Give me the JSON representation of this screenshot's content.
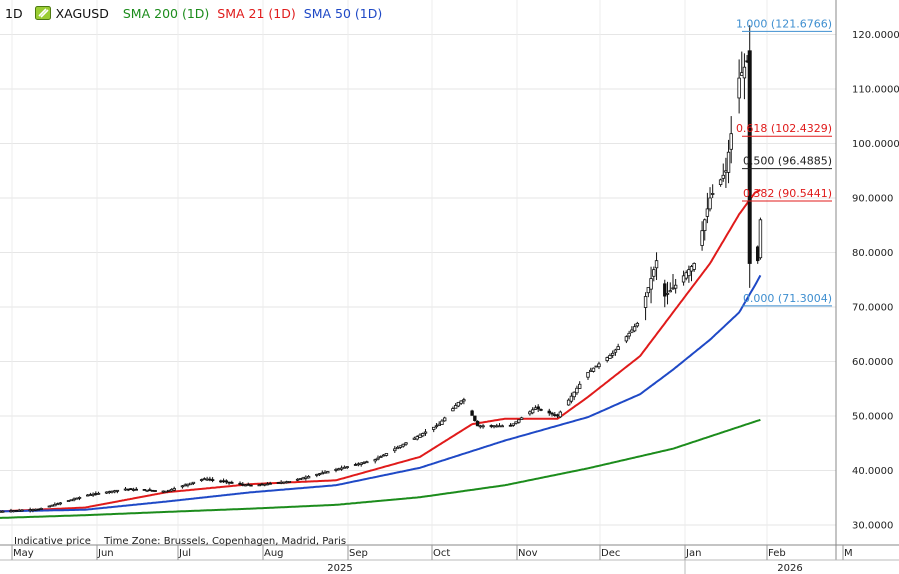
{
  "header": {
    "interval": "1D",
    "symbol": "XAGUSD",
    "studies": [
      {
        "label": "SMA 200 (1D)",
        "color": "#1c8c1c"
      },
      {
        "label": "SMA 21 (1D)",
        "color": "#e01b1b"
      },
      {
        "label": "SMA 50 (1D)",
        "color": "#1f49c6"
      }
    ]
  },
  "footer": {
    "price_note": "Indicative price",
    "timezone": "Time Zone: Brussels, Copenhagen, Madrid, Paris"
  },
  "chart_data": {
    "type": "line",
    "title": "",
    "xlabel": "",
    "ylabel": "",
    "ylim": [
      25.6,
      124.4
    ],
    "y_ticks": [
      "30.0000",
      "40.0000",
      "50.0000",
      "60.0000",
      "70.0000",
      "80.0000",
      "90.0000",
      "100.0000",
      "110.0000",
      "120.0000"
    ],
    "x_tick_labels": [
      "May",
      "Jun",
      "Jul",
      "Aug",
      "Sep",
      "Oct",
      "Nov",
      "Dec",
      "Jan",
      "Feb",
      "M"
    ],
    "year_labels": [
      "2025",
      "2026"
    ],
    "grid": true,
    "price_series": {
      "name": "XAGUSD",
      "candle_style": "black outline candles",
      "dates": [
        "May 1",
        "May 15",
        "Jun 2",
        "Jun 16",
        "Jul 1",
        "Jul 15",
        "Aug 1",
        "Aug 15",
        "Sep 1",
        "Sep 15",
        "Oct 1",
        "Oct 8",
        "Oct 15",
        "Oct 17",
        "Oct 22",
        "Nov 3",
        "Nov 12",
        "Nov 20",
        "Dec 1",
        "Dec 10",
        "Dec 19",
        "Dec 26",
        "Dec 29",
        "Jan 2",
        "Jan 9",
        "Jan 15",
        "Jan 21",
        "Jan 26",
        "Jan 29",
        "Jan 30",
        "Feb 2",
        "Feb 3"
      ],
      "close": [
        32.5,
        32.9,
        35.5,
        36.6,
        36.2,
        38.5,
        37.2,
        38.0,
        40.2,
        42.0,
        46.5,
        48.5,
        52.5,
        53.0,
        48.2,
        48.2,
        51.5,
        50.0,
        58.0,
        61.5,
        67.0,
        78.5,
        72.0,
        74.0,
        78.0,
        90.0,
        95.0,
        112.0,
        115.0,
        84.0,
        78.5,
        86.0
      ]
    },
    "series": [
      {
        "name": "SMA 200 (1D)",
        "color": "#1c8c1c",
        "dates": [
          "May 1",
          "Jun 1",
          "Jul 1",
          "Aug 1",
          "Sep 1",
          "Oct 1",
          "Nov 1",
          "Dec 1",
          "Jan 1",
          "Feb 3"
        ],
        "values": [
          31.3,
          31.8,
          32.4,
          33.0,
          33.7,
          35.1,
          37.3,
          40.4,
          44.0,
          49.3
        ]
      },
      {
        "name": "SMA 21 (1D)",
        "color": "#e01b1b",
        "dates": [
          "May 1",
          "Jun 1",
          "Jul 1",
          "Aug 1",
          "Sep 1",
          "Oct 1",
          "Oct 20",
          "Nov 1",
          "Nov 20",
          "Dec 1",
          "Dec 20",
          "Jan 1",
          "Jan 15",
          "Jan 26",
          "Feb 1",
          "Feb 3"
        ],
        "values": [
          32.5,
          33.2,
          36.0,
          37.5,
          38.2,
          42.5,
          48.5,
          49.5,
          49.5,
          53.5,
          61.0,
          69.0,
          78.0,
          87.0,
          91.0,
          91.5
        ]
      },
      {
        "name": "SMA 50 (1D)",
        "color": "#1f49c6",
        "dates": [
          "May 1",
          "Jun 1",
          "Jul 1",
          "Aug 1",
          "Sep 1",
          "Oct 1",
          "Nov 1",
          "Dec 1",
          "Dec 20",
          "Jan 1",
          "Jan 15",
          "Jan 26",
          "Feb 1",
          "Feb 3"
        ],
        "values": [
          32.5,
          32.8,
          34.3,
          36.0,
          37.3,
          40.5,
          45.5,
          49.8,
          54.0,
          58.5,
          64.0,
          69.0,
          74.0,
          75.8
        ]
      }
    ],
    "fibonacci": [
      {
        "label": "1.000 (121.6766)",
        "value": 121.6766,
        "color": "#3f8fd0"
      },
      {
        "label": "0.618 (102.4329)",
        "value": 102.4329,
        "color": "#e01b1b"
      },
      {
        "label": "0.500 (96.4885)",
        "value": 96.4885,
        "color": "#222222"
      },
      {
        "label": "0.382 (90.5441)",
        "value": 90.5441,
        "color": "#e01b1b"
      },
      {
        "label": "0.000 (71.3004)",
        "value": 71.3004,
        "color": "#3f8fd0"
      }
    ]
  }
}
